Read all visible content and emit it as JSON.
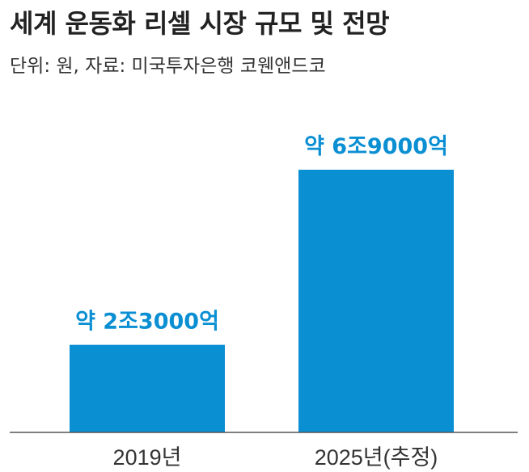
{
  "header": {
    "title": "세계 운동화 리셀 시장 규모 및 전망",
    "subtitle": "단위: 원, 자료: 미국투자은행 코웬앤드코"
  },
  "colors": {
    "bar": "#0b8fd3",
    "value_label": "#0b8fd3",
    "axis": "#555555",
    "tick_text": "#333333"
  },
  "chart_data": {
    "type": "bar",
    "title": "세계 운동화 리셀 시장 규모 및 전망",
    "subtitle": "단위: 원, 자료: 미국투자은행 코웬앤드코",
    "categories": [
      "2019년",
      "2025년(추정)"
    ],
    "values": [
      23000,
      69000
    ],
    "unit": "억 원",
    "data_labels": [
      "약 2조3000억",
      "약 6조9000억"
    ],
    "ylim": [
      0,
      75000
    ],
    "grid": false,
    "legend": "none"
  }
}
